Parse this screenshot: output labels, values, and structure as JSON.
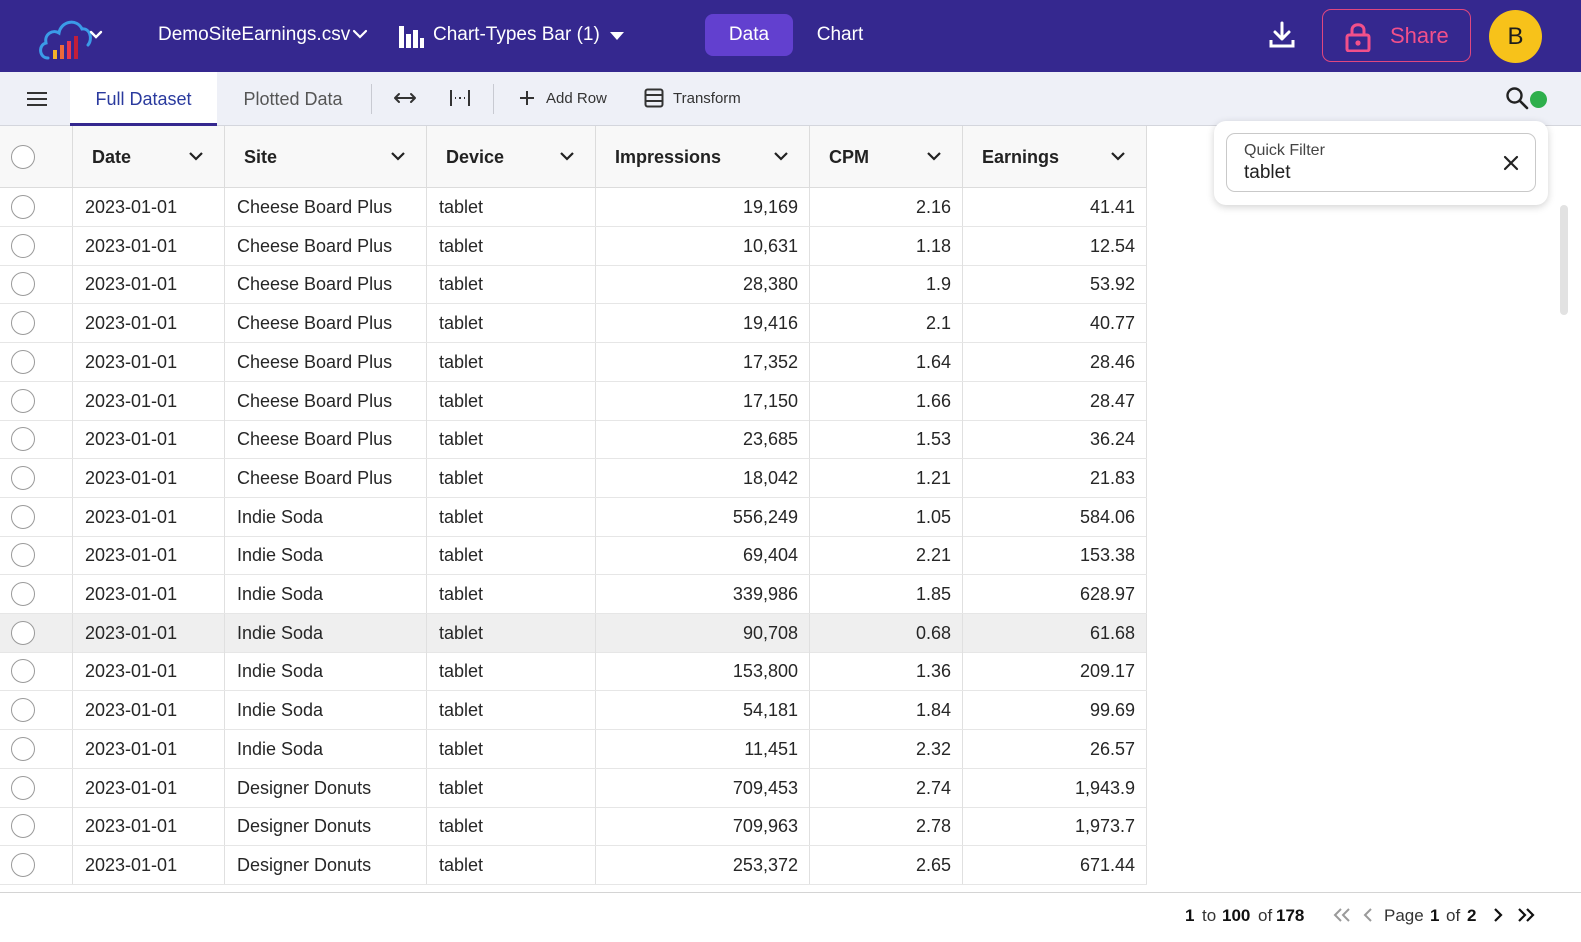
{
  "header": {
    "file_name": "DemoSiteEarnings.csv",
    "chart_name": "Chart-Types Bar (1)",
    "tab_data": "Data",
    "tab_chart": "Chart",
    "share_label": "Share",
    "avatar_initial": "B"
  },
  "toolbar": {
    "tab_full": "Full Dataset",
    "tab_plotted": "Plotted Data",
    "add_row": "Add Row",
    "transform": "Transform"
  },
  "quick_filter": {
    "label": "Quick Filter",
    "value": "tablet"
  },
  "grid": {
    "columns": [
      "Date",
      "Site",
      "Device",
      "Impressions",
      "CPM",
      "Earnings"
    ],
    "rows": [
      [
        "2023-01-01",
        "Cheese Board Plus",
        "tablet",
        "19,169",
        "2.16",
        "41.41"
      ],
      [
        "2023-01-01",
        "Cheese Board Plus",
        "tablet",
        "10,631",
        "1.18",
        "12.54"
      ],
      [
        "2023-01-01",
        "Cheese Board Plus",
        "tablet",
        "28,380",
        "1.9",
        "53.92"
      ],
      [
        "2023-01-01",
        "Cheese Board Plus",
        "tablet",
        "19,416",
        "2.1",
        "40.77"
      ],
      [
        "2023-01-01",
        "Cheese Board Plus",
        "tablet",
        "17,352",
        "1.64",
        "28.46"
      ],
      [
        "2023-01-01",
        "Cheese Board Plus",
        "tablet",
        "17,150",
        "1.66",
        "28.47"
      ],
      [
        "2023-01-01",
        "Cheese Board Plus",
        "tablet",
        "23,685",
        "1.53",
        "36.24"
      ],
      [
        "2023-01-01",
        "Cheese Board Plus",
        "tablet",
        "18,042",
        "1.21",
        "21.83"
      ],
      [
        "2023-01-01",
        "Indie Soda",
        "tablet",
        "556,249",
        "1.05",
        "584.06"
      ],
      [
        "2023-01-01",
        "Indie Soda",
        "tablet",
        "69,404",
        "2.21",
        "153.38"
      ],
      [
        "2023-01-01",
        "Indie Soda",
        "tablet",
        "339,986",
        "1.85",
        "628.97"
      ],
      [
        "2023-01-01",
        "Indie Soda",
        "tablet",
        "90,708",
        "0.68",
        "61.68"
      ],
      [
        "2023-01-01",
        "Indie Soda",
        "tablet",
        "153,800",
        "1.36",
        "209.17"
      ],
      [
        "2023-01-01",
        "Indie Soda",
        "tablet",
        "54,181",
        "1.84",
        "99.69"
      ],
      [
        "2023-01-01",
        "Indie Soda",
        "tablet",
        "11,451",
        "2.32",
        "26.57"
      ],
      [
        "2023-01-01",
        "Designer Donuts",
        "tablet",
        "709,453",
        "2.74",
        "1,943.9"
      ],
      [
        "2023-01-01",
        "Designer Donuts",
        "tablet",
        "709,963",
        "2.78",
        "1,973.7"
      ],
      [
        "2023-01-01",
        "Designer Donuts",
        "tablet",
        "253,372",
        "2.65",
        "671.44"
      ]
    ],
    "highlighted_row": 11
  },
  "pagination": {
    "from": "1",
    "to_word": "to",
    "to": "100",
    "of_word": "of",
    "total": "178",
    "page_word": "Page",
    "page": "1",
    "page_of_word": "of",
    "page_total": "2"
  },
  "icons": {
    "logo": "cloud-chart-logo-icon",
    "download": "download-icon",
    "share": "lock-icon",
    "menu": "hamburger-menu-icon",
    "search": "search-icon"
  },
  "colors": {
    "brand": "#35288f",
    "accent": "#6240cf",
    "share": "#f2508a",
    "avatar": "#f7c21a",
    "status": "#2eaf4c"
  }
}
